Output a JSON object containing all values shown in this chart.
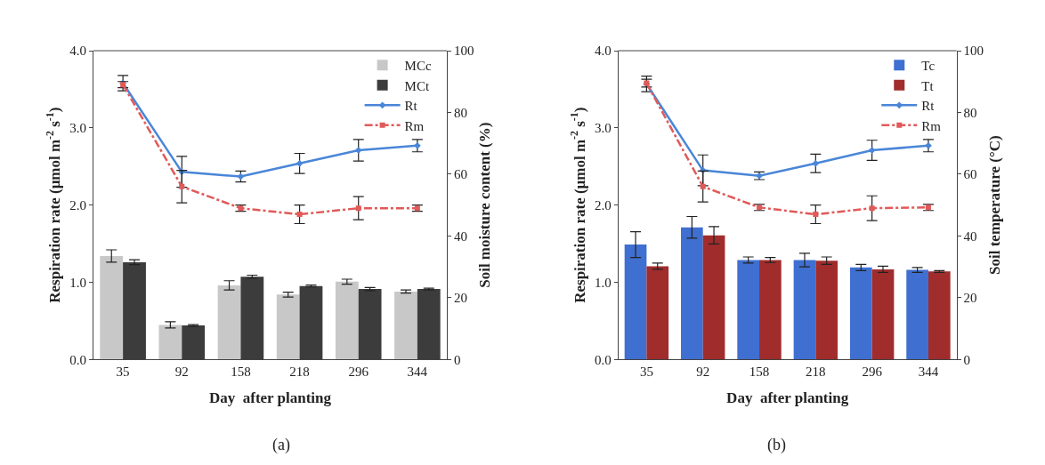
{
  "chart_data": [
    {
      "type": "bar",
      "xlabel": "Day  after planting",
      "ylabel": "Respiration rate (μmol m$^{-2}$ s$^{-1}$)",
      "y2label": "Soil moisture content (%)",
      "categories": [
        "35",
        "92",
        "158",
        "218",
        "296",
        "344"
      ],
      "ylim": [
        0,
        4
      ],
      "yticks": [
        {
          "value": 0,
          "label": "0.0"
        },
        {
          "value": 1,
          "label": "1.0"
        },
        {
          "value": 2,
          "label": "2.0"
        },
        {
          "value": 3,
          "label": "3.0"
        },
        {
          "value": 4,
          "label": "4.0"
        }
      ],
      "y2lim": [
        0,
        100
      ],
      "y2ticks": [
        0,
        20,
        40,
        60,
        80,
        100
      ],
      "legend": "top right",
      "annotations": [
        "(a)"
      ],
      "series": [
        {
          "name": "MCc",
          "axis": "y2",
          "color": "#c8c8c8",
          "values": [
            33.5,
            11.2,
            24,
            21,
            25.2,
            22
          ],
          "errors": [
            2,
            1,
            1.5,
            0.8,
            0.8,
            0.5
          ]
        },
        {
          "name": "MCt",
          "axis": "y2",
          "color": "#3c3c3c",
          "values": [
            31.5,
            11,
            26.8,
            23.8,
            22.8,
            22.8
          ],
          "errors": [
            0.8,
            0.3,
            0.5,
            0.3,
            0.5,
            0.3
          ]
        },
        {
          "name": "Rt",
          "type": "line",
          "color": "#4a86d8",
          "marker": "diamond",
          "line_style": "solid",
          "values": [
            3.58,
            2.43,
            2.37,
            2.54,
            2.71,
            2.77
          ],
          "errors": [
            0.1,
            0.2,
            0.07,
            0.13,
            0.14,
            0.08
          ]
        },
        {
          "name": "Rm",
          "type": "line",
          "color": "#e05a5a",
          "marker": "square",
          "line_style": "dashed",
          "values": [
            3.56,
            2.24,
            1.96,
            1.88,
            1.96,
            1.96
          ],
          "errors": [
            0.04,
            0.21,
            0.04,
            0.12,
            0.15,
            0.04
          ]
        }
      ]
    },
    {
      "type": "bar",
      "xlabel": "Day  after planting",
      "ylabel": "Respiration rate (μmol m$^{-2}$ s$^{-1}$)",
      "y2label": "Soil temperature (°C)",
      "categories": [
        "35",
        "92",
        "158",
        "218",
        "296",
        "344"
      ],
      "ylim": [
        0,
        4
      ],
      "yticks": [
        {
          "value": 0,
          "label": "0.0"
        },
        {
          "value": 1,
          "label": "1.0"
        },
        {
          "value": 2,
          "label": "2.0"
        },
        {
          "value": 3,
          "label": "3.0"
        },
        {
          "value": 4,
          "label": "4.0"
        }
      ],
      "y2lim": [
        0,
        100
      ],
      "y2ticks": [
        0,
        20,
        40,
        60,
        80,
        100
      ],
      "legend": "top right",
      "annotations": [
        "(b)"
      ],
      "series": [
        {
          "name": "Tc",
          "axis": "y2",
          "color": "#3f6fd0",
          "values": [
            37.2,
            42.8,
            32.2,
            32.2,
            29.8,
            29
          ],
          "errors": [
            4.2,
            3.5,
            1,
            2.2,
            1,
            0.8
          ]
        },
        {
          "name": "Tt",
          "axis": "y2",
          "color": "#a02c2c",
          "values": [
            30.2,
            40.2,
            32.2,
            32,
            29.2,
            28.5
          ],
          "errors": [
            1,
            2.8,
            0.8,
            1.2,
            1,
            0.3
          ]
        },
        {
          "name": "Rt",
          "type": "line",
          "color": "#4a86d8",
          "marker": "diamond",
          "line_style": "solid",
          "values": [
            3.57,
            2.45,
            2.38,
            2.54,
            2.71,
            2.77
          ],
          "errors": [
            0.1,
            0.2,
            0.05,
            0.12,
            0.13,
            0.08
          ]
        },
        {
          "name": "Rm",
          "type": "line",
          "color": "#e05a5a",
          "marker": "square",
          "line_style": "dashed",
          "values": [
            3.58,
            2.24,
            1.97,
            1.88,
            1.96,
            1.97
          ],
          "errors": [
            0.05,
            0.2,
            0.04,
            0.12,
            0.16,
            0.04
          ]
        }
      ]
    }
  ]
}
